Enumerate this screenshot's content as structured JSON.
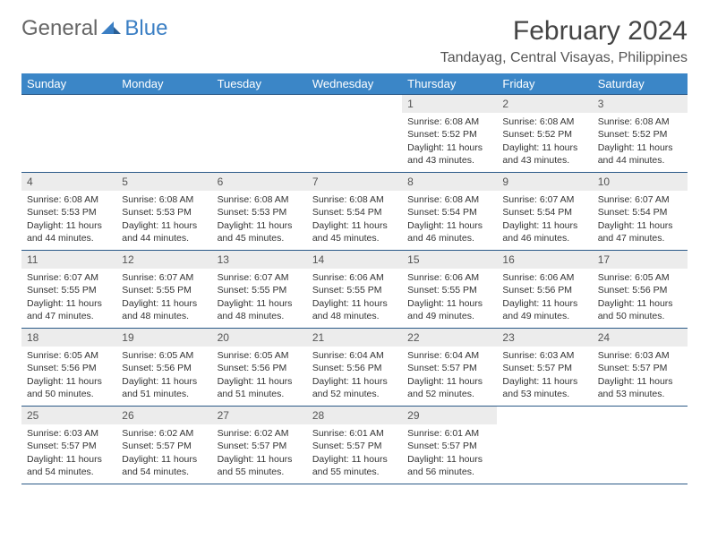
{
  "logo": {
    "text1": "General",
    "text2": "Blue"
  },
  "title": "February 2024",
  "location": "Tandayag, Central Visayas, Philippines",
  "colors": {
    "header_bg": "#3b86c7",
    "header_fg": "#ffffff",
    "row_border": "#2b5a88",
    "daynum_bg": "#ececec",
    "logo_blue": "#3b7fc4"
  },
  "days_of_week": [
    "Sunday",
    "Monday",
    "Tuesday",
    "Wednesday",
    "Thursday",
    "Friday",
    "Saturday"
  ],
  "weeks": [
    [
      null,
      null,
      null,
      null,
      {
        "n": "1",
        "sunrise": "6:08 AM",
        "sunset": "5:52 PM",
        "daylight": "11 hours and 43 minutes."
      },
      {
        "n": "2",
        "sunrise": "6:08 AM",
        "sunset": "5:52 PM",
        "daylight": "11 hours and 43 minutes."
      },
      {
        "n": "3",
        "sunrise": "6:08 AM",
        "sunset": "5:52 PM",
        "daylight": "11 hours and 44 minutes."
      }
    ],
    [
      {
        "n": "4",
        "sunrise": "6:08 AM",
        "sunset": "5:53 PM",
        "daylight": "11 hours and 44 minutes."
      },
      {
        "n": "5",
        "sunrise": "6:08 AM",
        "sunset": "5:53 PM",
        "daylight": "11 hours and 44 minutes."
      },
      {
        "n": "6",
        "sunrise": "6:08 AM",
        "sunset": "5:53 PM",
        "daylight": "11 hours and 45 minutes."
      },
      {
        "n": "7",
        "sunrise": "6:08 AM",
        "sunset": "5:54 PM",
        "daylight": "11 hours and 45 minutes."
      },
      {
        "n": "8",
        "sunrise": "6:08 AM",
        "sunset": "5:54 PM",
        "daylight": "11 hours and 46 minutes."
      },
      {
        "n": "9",
        "sunrise": "6:07 AM",
        "sunset": "5:54 PM",
        "daylight": "11 hours and 46 minutes."
      },
      {
        "n": "10",
        "sunrise": "6:07 AM",
        "sunset": "5:54 PM",
        "daylight": "11 hours and 47 minutes."
      }
    ],
    [
      {
        "n": "11",
        "sunrise": "6:07 AM",
        "sunset": "5:55 PM",
        "daylight": "11 hours and 47 minutes."
      },
      {
        "n": "12",
        "sunrise": "6:07 AM",
        "sunset": "5:55 PM",
        "daylight": "11 hours and 48 minutes."
      },
      {
        "n": "13",
        "sunrise": "6:07 AM",
        "sunset": "5:55 PM",
        "daylight": "11 hours and 48 minutes."
      },
      {
        "n": "14",
        "sunrise": "6:06 AM",
        "sunset": "5:55 PM",
        "daylight": "11 hours and 48 minutes."
      },
      {
        "n": "15",
        "sunrise": "6:06 AM",
        "sunset": "5:55 PM",
        "daylight": "11 hours and 49 minutes."
      },
      {
        "n": "16",
        "sunrise": "6:06 AM",
        "sunset": "5:56 PM",
        "daylight": "11 hours and 49 minutes."
      },
      {
        "n": "17",
        "sunrise": "6:05 AM",
        "sunset": "5:56 PM",
        "daylight": "11 hours and 50 minutes."
      }
    ],
    [
      {
        "n": "18",
        "sunrise": "6:05 AM",
        "sunset": "5:56 PM",
        "daylight": "11 hours and 50 minutes."
      },
      {
        "n": "19",
        "sunrise": "6:05 AM",
        "sunset": "5:56 PM",
        "daylight": "11 hours and 51 minutes."
      },
      {
        "n": "20",
        "sunrise": "6:05 AM",
        "sunset": "5:56 PM",
        "daylight": "11 hours and 51 minutes."
      },
      {
        "n": "21",
        "sunrise": "6:04 AM",
        "sunset": "5:56 PM",
        "daylight": "11 hours and 52 minutes."
      },
      {
        "n": "22",
        "sunrise": "6:04 AM",
        "sunset": "5:57 PM",
        "daylight": "11 hours and 52 minutes."
      },
      {
        "n": "23",
        "sunrise": "6:03 AM",
        "sunset": "5:57 PM",
        "daylight": "11 hours and 53 minutes."
      },
      {
        "n": "24",
        "sunrise": "6:03 AM",
        "sunset": "5:57 PM",
        "daylight": "11 hours and 53 minutes."
      }
    ],
    [
      {
        "n": "25",
        "sunrise": "6:03 AM",
        "sunset": "5:57 PM",
        "daylight": "11 hours and 54 minutes."
      },
      {
        "n": "26",
        "sunrise": "6:02 AM",
        "sunset": "5:57 PM",
        "daylight": "11 hours and 54 minutes."
      },
      {
        "n": "27",
        "sunrise": "6:02 AM",
        "sunset": "5:57 PM",
        "daylight": "11 hours and 55 minutes."
      },
      {
        "n": "28",
        "sunrise": "6:01 AM",
        "sunset": "5:57 PM",
        "daylight": "11 hours and 55 minutes."
      },
      {
        "n": "29",
        "sunrise": "6:01 AM",
        "sunset": "5:57 PM",
        "daylight": "11 hours and 56 minutes."
      },
      null,
      null
    ]
  ],
  "labels": {
    "sunrise_prefix": "Sunrise: ",
    "sunset_prefix": "Sunset: ",
    "daylight_prefix": "Daylight: "
  }
}
